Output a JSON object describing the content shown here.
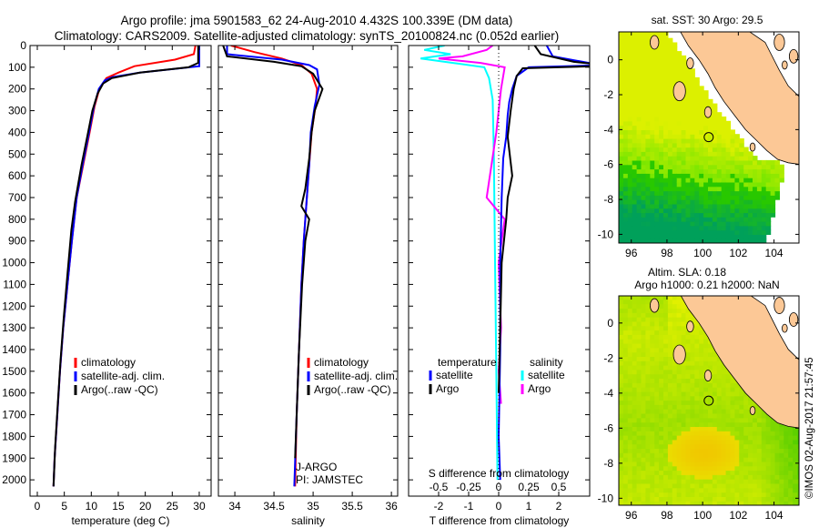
{
  "title_line1": "Argo profile: jma 5901583_62 24-Aug-2010 4.432S 100.339E (DM data)",
  "title_line2": "Climatology: CARS2009. Satellite-adjusted climatology: synTS_20100824.nc (0.052d earlier)",
  "watermark": "©IMOS 02-Aug-2017 21:57:45",
  "chart_data": [
    {
      "type": "line",
      "id": "temperature",
      "xlabel": "temperature (deg C)",
      "ylabel": "",
      "xlim": [
        -1.35,
        32.2
      ],
      "ylim": [
        0,
        2075
      ],
      "y_reversed": true,
      "xticks": [
        0,
        5,
        10,
        15,
        20,
        25,
        30
      ],
      "xtick_labels": [
        "0",
        "5",
        "10",
        "15",
        "20",
        "25",
        "30"
      ],
      "yticks": [
        0,
        100,
        200,
        300,
        400,
        500,
        600,
        700,
        800,
        900,
        1000,
        1100,
        1200,
        1300,
        1400,
        1500,
        1600,
        1700,
        1800,
        1900,
        2000
      ],
      "ytick_labels": [
        "0",
        "100",
        "200",
        "300",
        "400",
        "500",
        "600",
        "700",
        "800",
        "900",
        "1000",
        "1100",
        "1200",
        "1300",
        "1400",
        "1500",
        "1600",
        "1700",
        "1800",
        "1900",
        "2000"
      ],
      "legend": [
        {
          "label": "climatology",
          "color": "#ff0000"
        },
        {
          "label": "satellite-adj. clim.",
          "color": "#0000ff"
        },
        {
          "label": "Argo(..raw -QC)",
          "color": "#000000"
        }
      ],
      "series": [
        {
          "name": "climatology",
          "color": "#ff0000",
          "points": [
            [
              29.3,
              0
            ],
            [
              29.0,
              40
            ],
            [
              25.5,
              65
            ],
            [
              18,
              95
            ],
            [
              15,
              125
            ],
            [
              12.8,
              150
            ],
            [
              11.5,
              200
            ],
            [
              10.6,
              280
            ],
            [
              9.7,
              400
            ],
            [
              8.5,
              550
            ],
            [
              7.3,
              700
            ],
            [
              6.4,
              900
            ],
            [
              5.6,
              1100
            ],
            [
              4.8,
              1300
            ],
            [
              4.2,
              1500
            ],
            [
              3.7,
              1700
            ],
            [
              3.2,
              1900
            ],
            [
              3.0,
              2030
            ]
          ]
        },
        {
          "name": "satellite-adj. clim.",
          "color": "#0000ff",
          "points": [
            [
              30.0,
              0
            ],
            [
              30.0,
              95
            ],
            [
              19,
              125
            ],
            [
              14,
              145
            ],
            [
              12.5,
              160
            ],
            [
              11.4,
              200
            ],
            [
              10.5,
              280
            ],
            [
              9.6,
              400
            ],
            [
              8.4,
              550
            ],
            [
              7.3,
              700
            ],
            [
              6.4,
              900
            ],
            [
              5.6,
              1100
            ],
            [
              4.8,
              1300
            ],
            [
              4.2,
              1500
            ],
            [
              3.7,
              1700
            ],
            [
              3.2,
              1900
            ],
            [
              3.0,
              2030
            ]
          ]
        },
        {
          "name": "Argo",
          "color": "#000000",
          "points": [
            [
              29.8,
              0
            ],
            [
              29.8,
              80
            ],
            [
              28,
              100
            ],
            [
              19,
              125
            ],
            [
              13.8,
              150
            ],
            [
              12.2,
              175
            ],
            [
              11.2,
              220
            ],
            [
              10.2,
              300
            ],
            [
              9.4,
              400
            ],
            [
              8.2,
              550
            ],
            [
              7.0,
              720
            ],
            [
              6.3,
              850
            ],
            [
              5.6,
              1050
            ],
            [
              4.9,
              1250
            ],
            [
              4.3,
              1450
            ],
            [
              3.8,
              1650
            ],
            [
              3.3,
              1850
            ],
            [
              3.0,
              2030
            ]
          ]
        }
      ]
    },
    {
      "type": "line",
      "id": "salinity",
      "xlabel": "salinity",
      "xlim": [
        33.79,
        36.08
      ],
      "ylim": [
        0,
        2075
      ],
      "y_reversed": true,
      "xticks": [
        34,
        34.5,
        35,
        35.5,
        36
      ],
      "xtick_labels": [
        "34",
        "34.5",
        "35",
        "35.5",
        "36"
      ],
      "yticks": [
        0,
        100,
        200,
        300,
        400,
        500,
        600,
        700,
        800,
        900,
        1000,
        1100,
        1200,
        1300,
        1400,
        1500,
        1600,
        1700,
        1800,
        1900,
        2000
      ],
      "legend": [
        {
          "label": "climatology",
          "color": "#ff0000"
        },
        {
          "label": "satellite-adj. clim.",
          "color": "#0000ff"
        },
        {
          "label": "Argo(..raw -QC)",
          "color": "#000000"
        }
      ],
      "annotations": [
        "J-ARGO",
        "PI: JAMSTEC"
      ],
      "series": [
        {
          "name": "climatology",
          "color": "#ff0000",
          "points": [
            [
              33.95,
              0
            ],
            [
              34.25,
              30
            ],
            [
              34.6,
              60
            ],
            [
              34.85,
              90
            ],
            [
              34.98,
              130
            ],
            [
              35.05,
              200
            ],
            [
              35.03,
              280
            ],
            [
              34.98,
              400
            ],
            [
              34.95,
              550
            ],
            [
              34.92,
              700
            ],
            [
              34.88,
              900
            ],
            [
              34.85,
              1100
            ],
            [
              34.82,
              1400
            ],
            [
              34.79,
              1700
            ],
            [
              34.77,
              2030
            ]
          ]
        },
        {
          "name": "satellite-adj. clim.",
          "color": "#0000ff",
          "points": [
            [
              33.9,
              0
            ],
            [
              33.9,
              40
            ],
            [
              34.6,
              65
            ],
            [
              34.95,
              90
            ],
            [
              35.05,
              110
            ],
            [
              35.08,
              180
            ],
            [
              35.02,
              280
            ],
            [
              34.97,
              400
            ],
            [
              34.95,
              550
            ],
            [
              34.92,
              700
            ],
            [
              34.88,
              900
            ],
            [
              34.85,
              1100
            ],
            [
              34.82,
              1400
            ],
            [
              34.79,
              1700
            ],
            [
              34.76,
              2030
            ]
          ]
        },
        {
          "name": "Argo",
          "color": "#000000",
          "points": [
            [
              33.85,
              0
            ],
            [
              33.9,
              50
            ],
            [
              34.5,
              75
            ],
            [
              34.85,
              95
            ],
            [
              35.0,
              130
            ],
            [
              35.12,
              200
            ],
            [
              35.02,
              300
            ],
            [
              34.98,
              400
            ],
            [
              34.95,
              520
            ],
            [
              34.9,
              660
            ],
            [
              34.85,
              740
            ],
            [
              34.95,
              800
            ],
            [
              34.9,
              900
            ],
            [
              34.86,
              1100
            ],
            [
              34.82,
              1400
            ],
            [
              34.79,
              1700
            ],
            [
              34.77,
              1900
            ]
          ]
        }
      ]
    },
    {
      "type": "line",
      "id": "difference",
      "xlabel": "T difference from climatology",
      "xlabel_top": "S difference from climatology",
      "xlim": [
        -3.0,
        3.03
      ],
      "ylim": [
        0,
        2075
      ],
      "y_reversed": true,
      "xticks": [
        -2,
        -1,
        0,
        1,
        2
      ],
      "xtick_labels": [
        "-2",
        "-1",
        "0",
        "1",
        "2"
      ],
      "s_xticks": [
        -0.5,
        -0.25,
        0,
        0.25,
        0.5
      ],
      "s_xtick_labels": [
        "-0.5",
        "-0.25",
        "0",
        "0.25",
        "0.5"
      ],
      "s_scale": 4,
      "yticks": [
        0,
        100,
        200,
        300,
        400,
        500,
        600,
        700,
        800,
        900,
        1000,
        1100,
        1200,
        1300,
        1400,
        1500,
        1600,
        1700,
        1800,
        1900,
        2000
      ],
      "legend_temperature": {
        "heading": "temperature",
        "items": [
          {
            "label": "satellite",
            "color": "#0000ff"
          },
          {
            "label": "Argo",
            "color": "#000000"
          }
        ]
      },
      "legend_salinity": {
        "heading": "salinity",
        "items": [
          {
            "label": "satellite",
            "color": "#00ffff"
          },
          {
            "label": "Argo",
            "color": "#ff00ff"
          }
        ]
      },
      "series": [
        {
          "name": "S satellite",
          "var": "S",
          "color": "#00ffff",
          "points": [
            [
              -0.45,
              0
            ],
            [
              -0.62,
              20
            ],
            [
              -0.4,
              40
            ],
            [
              -0.65,
              60
            ],
            [
              -0.38,
              80
            ],
            [
              -0.12,
              100
            ],
            [
              -0.08,
              150
            ],
            [
              -0.05,
              250
            ],
            [
              -0.04,
              500
            ],
            [
              -0.03,
              1000
            ],
            [
              -0.02,
              1500
            ],
            [
              -0.01,
              2000
            ]
          ]
        },
        {
          "name": "S Argo",
          "var": "S",
          "color": "#ff00ff",
          "points": [
            [
              -0.05,
              0
            ],
            [
              -0.1,
              20
            ],
            [
              -0.3,
              50
            ],
            [
              -0.5,
              60
            ],
            [
              -0.15,
              80
            ],
            [
              0.05,
              100
            ],
            [
              0.02,
              200
            ],
            [
              -0.02,
              400
            ],
            [
              -0.1,
              700
            ],
            [
              0.05,
              800
            ],
            [
              0.0,
              1000
            ],
            [
              0.02,
              1300
            ],
            [
              0.0,
              1500
            ],
            [
              0.02,
              1650
            ]
          ]
        },
        {
          "name": "T satellite",
          "var": "T",
          "color": "#0000ff",
          "points": [
            [
              1.6,
              0
            ],
            [
              1.8,
              50
            ],
            [
              3.2,
              85
            ],
            [
              3.2,
              92
            ],
            [
              1.0,
              100
            ],
            [
              0.6,
              140
            ],
            [
              0.45,
              200
            ],
            [
              0.35,
              260
            ],
            [
              0.3,
              320
            ],
            [
              0.25,
              420
            ],
            [
              0.15,
              520
            ],
            [
              0.1,
              700
            ],
            [
              0.05,
              1000
            ],
            [
              0.05,
              1400
            ],
            [
              0.0,
              1800
            ],
            [
              0.05,
              2000
            ]
          ]
        },
        {
          "name": "T Argo",
          "var": "T",
          "color": "#000000",
          "points": [
            [
              1.2,
              0
            ],
            [
              1.4,
              40
            ],
            [
              2.5,
              75
            ],
            [
              3.2,
              85
            ],
            [
              3.2,
              95
            ],
            [
              0.8,
              105
            ],
            [
              0.6,
              140
            ],
            [
              0.5,
              200
            ],
            [
              0.4,
              300
            ],
            [
              0.3,
              420
            ],
            [
              0.45,
              600
            ],
            [
              0.3,
              700
            ],
            [
              0.25,
              800
            ],
            [
              0.1,
              1000
            ],
            [
              0.05,
              1300
            ],
            [
              0.0,
              1600
            ]
          ]
        }
      ]
    },
    {
      "type": "heatmap",
      "id": "sst-map",
      "title": "sat. SST: 30 Argo: 29.5",
      "xlim": [
        95.3,
        105.4
      ],
      "ylim": [
        -10.5,
        1.6
      ],
      "xticks": [
        96,
        98,
        100,
        102,
        104
      ],
      "xtick_labels": [
        "96",
        "98",
        "100",
        "102",
        "104"
      ],
      "yticks": [
        0,
        -2,
        -4,
        -6,
        -8,
        -10
      ],
      "ytick_labels": [
        "0",
        "-2",
        "-4",
        "-6",
        "-8",
        "-10"
      ],
      "argo_position": [
        100.339,
        -4.432
      ]
    },
    {
      "type": "heatmap",
      "id": "sla-map",
      "title_line1": "Altim. SLA: 0.18",
      "title_line2": "Argo h1000: 0.21 h2000: NaN",
      "xlim": [
        95.3,
        105.4
      ],
      "ylim": [
        -10.4,
        1.55
      ],
      "xticks": [
        96,
        98,
        100,
        102,
        104
      ],
      "xtick_labels": [
        "96",
        "98",
        "100",
        "102",
        "104"
      ],
      "yticks": [
        0,
        -2,
        -4,
        -6,
        -8,
        -10
      ],
      "ytick_labels": [
        "0",
        "-2",
        "-4",
        "-6",
        "-8",
        "-10"
      ],
      "argo_position": [
        100.339,
        -4.432
      ]
    }
  ]
}
